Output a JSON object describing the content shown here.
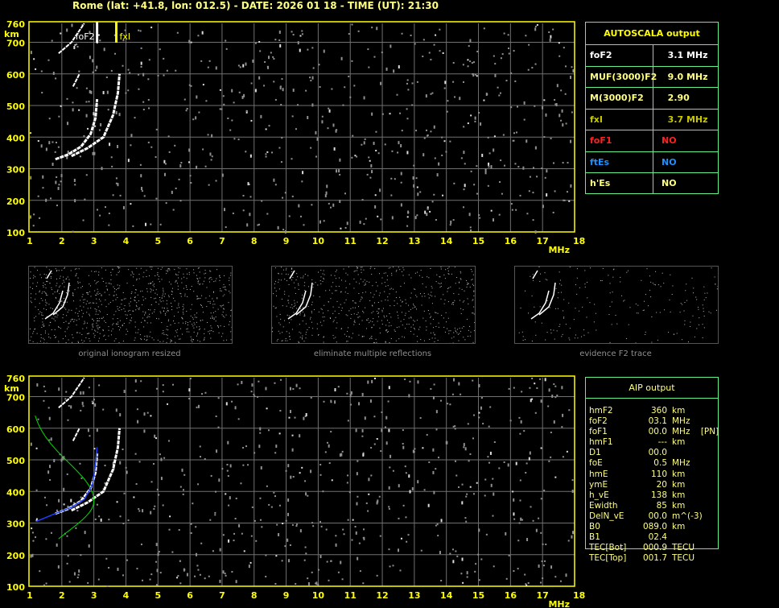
{
  "title": "Rome (lat: +41.8, lon: 012.5) - DATE: 2026 01 18 - TIME (UT): 21:30",
  "axes": {
    "x_ticks": [
      "1",
      "2",
      "3",
      "4",
      "5",
      "6",
      "7",
      "8",
      "9",
      "10",
      "11",
      "12",
      "13",
      "14",
      "15",
      "16",
      "17",
      "18"
    ],
    "x_unit": "MHz",
    "y_ticks": [
      "100",
      "200",
      "300",
      "400",
      "500",
      "600",
      "700",
      "760"
    ],
    "y_unit": "km"
  },
  "top_plot": {
    "markers": [
      {
        "label": "foF2",
        "freq_mhz": 3.1,
        "color": "#ffffff"
      },
      {
        "label": "fxI",
        "freq_mhz": 3.7,
        "color": "#ffff00"
      }
    ]
  },
  "thumbnails": [
    {
      "caption": "original ionogram resized"
    },
    {
      "caption": "eliminate multiple reflections"
    },
    {
      "caption": "evidence F2 trace"
    }
  ],
  "autoscala": {
    "title": "AUTOSCALA output",
    "rows": [
      {
        "key": "foF2",
        "value": "  3.1 MHz",
        "color": "#ffffff"
      },
      {
        "key": "MUF(3000)F2",
        "value": "  9.0 MHz",
        "color": "#ffff80"
      },
      {
        "key": "M(3000)F2",
        "value": "  2.90",
        "color": "#ffff80"
      },
      {
        "key": "fxI",
        "value": "  3.7 MHz",
        "color": "#c8c800"
      },
      {
        "key": "foF1",
        "value": "NO",
        "color": "#ff2020"
      },
      {
        "key": "ftEs",
        "value": "NO",
        "color": "#1e90ff"
      },
      {
        "key": "h'Es",
        "value": "NO",
        "color": "#ffff80"
      }
    ]
  },
  "aip": {
    "title": "AIP output",
    "rows": [
      {
        "key": "hmF2",
        "value": "360",
        "unit": "km"
      },
      {
        "key": "foF2",
        "value": "03.1",
        "unit": "MHz"
      },
      {
        "key": "foF1",
        "value": "00.0",
        "unit": "MHz    [PN]"
      },
      {
        "key": "hmF1",
        "value": "---",
        "unit": "km"
      },
      {
        "key": "D1",
        "value": "00.0",
        "unit": ""
      },
      {
        "key": "foE",
        "value": "0.5",
        "unit": "MHz"
      },
      {
        "key": "hmE",
        "value": "110",
        "unit": "km"
      },
      {
        "key": "ymE",
        "value": "20",
        "unit": "km"
      },
      {
        "key": "h_vE",
        "value": "138",
        "unit": "km"
      },
      {
        "key": "Ewidth",
        "value": "85",
        "unit": "km"
      },
      {
        "key": "DelN_vE",
        "value": "00.0",
        "unit": "m^(-3)"
      },
      {
        "key": "B0",
        "value": "089.0",
        "unit": "km"
      },
      {
        "key": "B1",
        "value": "02.4",
        "unit": ""
      },
      {
        "key": "TEC[Bot]",
        "value": "000.9",
        "unit": "TECU"
      },
      {
        "key": "TEC[Top]",
        "value": "001.7",
        "unit": "TECU"
      }
    ]
  },
  "colors": {
    "axis": "#ffff00",
    "grid": "#707070",
    "table_border": "#66ee88",
    "profile": "#00dd00",
    "fit": "#2040ff"
  }
}
